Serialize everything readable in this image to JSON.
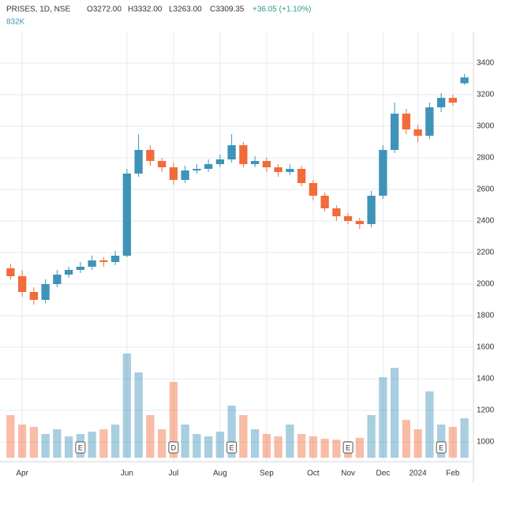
{
  "chart_data": {
    "type": "candlestick",
    "header": {
      "symbol": "PRISES, 1D, NSE",
      "open": "O3272.00",
      "high": "H3332.00",
      "low": "L3263.00",
      "close": "C3309.35",
      "change": "+36.05 (+1.10%)",
      "volume": "832K"
    },
    "categories": [
      null,
      "Apr",
      null,
      null,
      null,
      null,
      null,
      null,
      null,
      null,
      "Jun",
      null,
      null,
      null,
      "Jul",
      null,
      null,
      null,
      "Aug",
      null,
      null,
      null,
      "Sep",
      null,
      null,
      null,
      "Oct",
      null,
      null,
      "Nov",
      null,
      null,
      "Dec",
      null,
      null,
      "2024",
      null,
      null,
      "Feb",
      null
    ],
    "events": [
      null,
      null,
      null,
      null,
      null,
      null,
      "E",
      null,
      null,
      null,
      null,
      null,
      null,
      null,
      "D",
      null,
      null,
      null,
      null,
      "E",
      null,
      null,
      null,
      null,
      null,
      null,
      null,
      null,
      null,
      "E",
      null,
      null,
      null,
      null,
      null,
      null,
      null,
      "E",
      null,
      null
    ],
    "open": [
      2100,
      2050,
      1950,
      1900,
      2000,
      2060,
      2090,
      2110,
      2150,
      2140,
      2180,
      2700,
      2850,
      2780,
      2740,
      2660,
      2720,
      2730,
      2760,
      2790,
      2880,
      2760,
      2780,
      2740,
      2710,
      2730,
      2640,
      2560,
      2480,
      2430,
      2400,
      2380,
      2560,
      2850,
      3080,
      2980,
      2940,
      3120,
      3180,
      3272
    ],
    "high": [
      2130,
      2090,
      1980,
      2030,
      2090,
      2110,
      2140,
      2180,
      2170,
      2210,
      2730,
      2950,
      2880,
      2800,
      2770,
      2750,
      2760,
      2790,
      2820,
      2950,
      2900,
      2810,
      2800,
      2760,
      2760,
      2750,
      2660,
      2580,
      2500,
      2450,
      2420,
      2590,
      2880,
      3150,
      3110,
      3010,
      3150,
      3210,
      3200,
      3332
    ],
    "low": [
      2030,
      1920,
      1870,
      1880,
      1980,
      2040,
      2070,
      2090,
      2110,
      2120,
      2170,
      2680,
      2750,
      2710,
      2630,
      2640,
      2700,
      2710,
      2740,
      2770,
      2740,
      2740,
      2710,
      2680,
      2690,
      2620,
      2530,
      2460,
      2400,
      2380,
      2350,
      2360,
      2540,
      2830,
      2950,
      2900,
      2920,
      3090,
      3130,
      3263
    ],
    "close": [
      2050,
      1950,
      1900,
      2000,
      2060,
      2090,
      2110,
      2150,
      2140,
      2180,
      2700,
      2850,
      2780,
      2740,
      2660,
      2720,
      2730,
      2760,
      2790,
      2880,
      2760,
      2780,
      2740,
      2710,
      2730,
      2640,
      2560,
      2480,
      2430,
      2400,
      2380,
      2560,
      2850,
      3080,
      2980,
      2940,
      3120,
      3180,
      3150,
      3309.35
    ],
    "volume": [
      900000,
      700000,
      650000,
      500000,
      600000,
      450000,
      500000,
      550000,
      600000,
      700000,
      2200000,
      1800000,
      900000,
      600000,
      1600000,
      700000,
      500000,
      450000,
      550000,
      1100000,
      900000,
      600000,
      500000,
      450000,
      700000,
      500000,
      450000,
      400000,
      380000,
      350000,
      420000,
      900000,
      1700000,
      1900000,
      800000,
      600000,
      1400000,
      700000,
      650000,
      832000
    ],
    "ylim": [
      900,
      3500
    ],
    "yticks": [
      1000,
      1200,
      1400,
      1600,
      1800,
      2000,
      2200,
      2400,
      2600,
      2800,
      3000,
      3200,
      3400
    ],
    "vlim": [
      0,
      2500000
    ],
    "up_color": "#3f93b8",
    "down_color": "#f26b3a",
    "grid": true
  }
}
